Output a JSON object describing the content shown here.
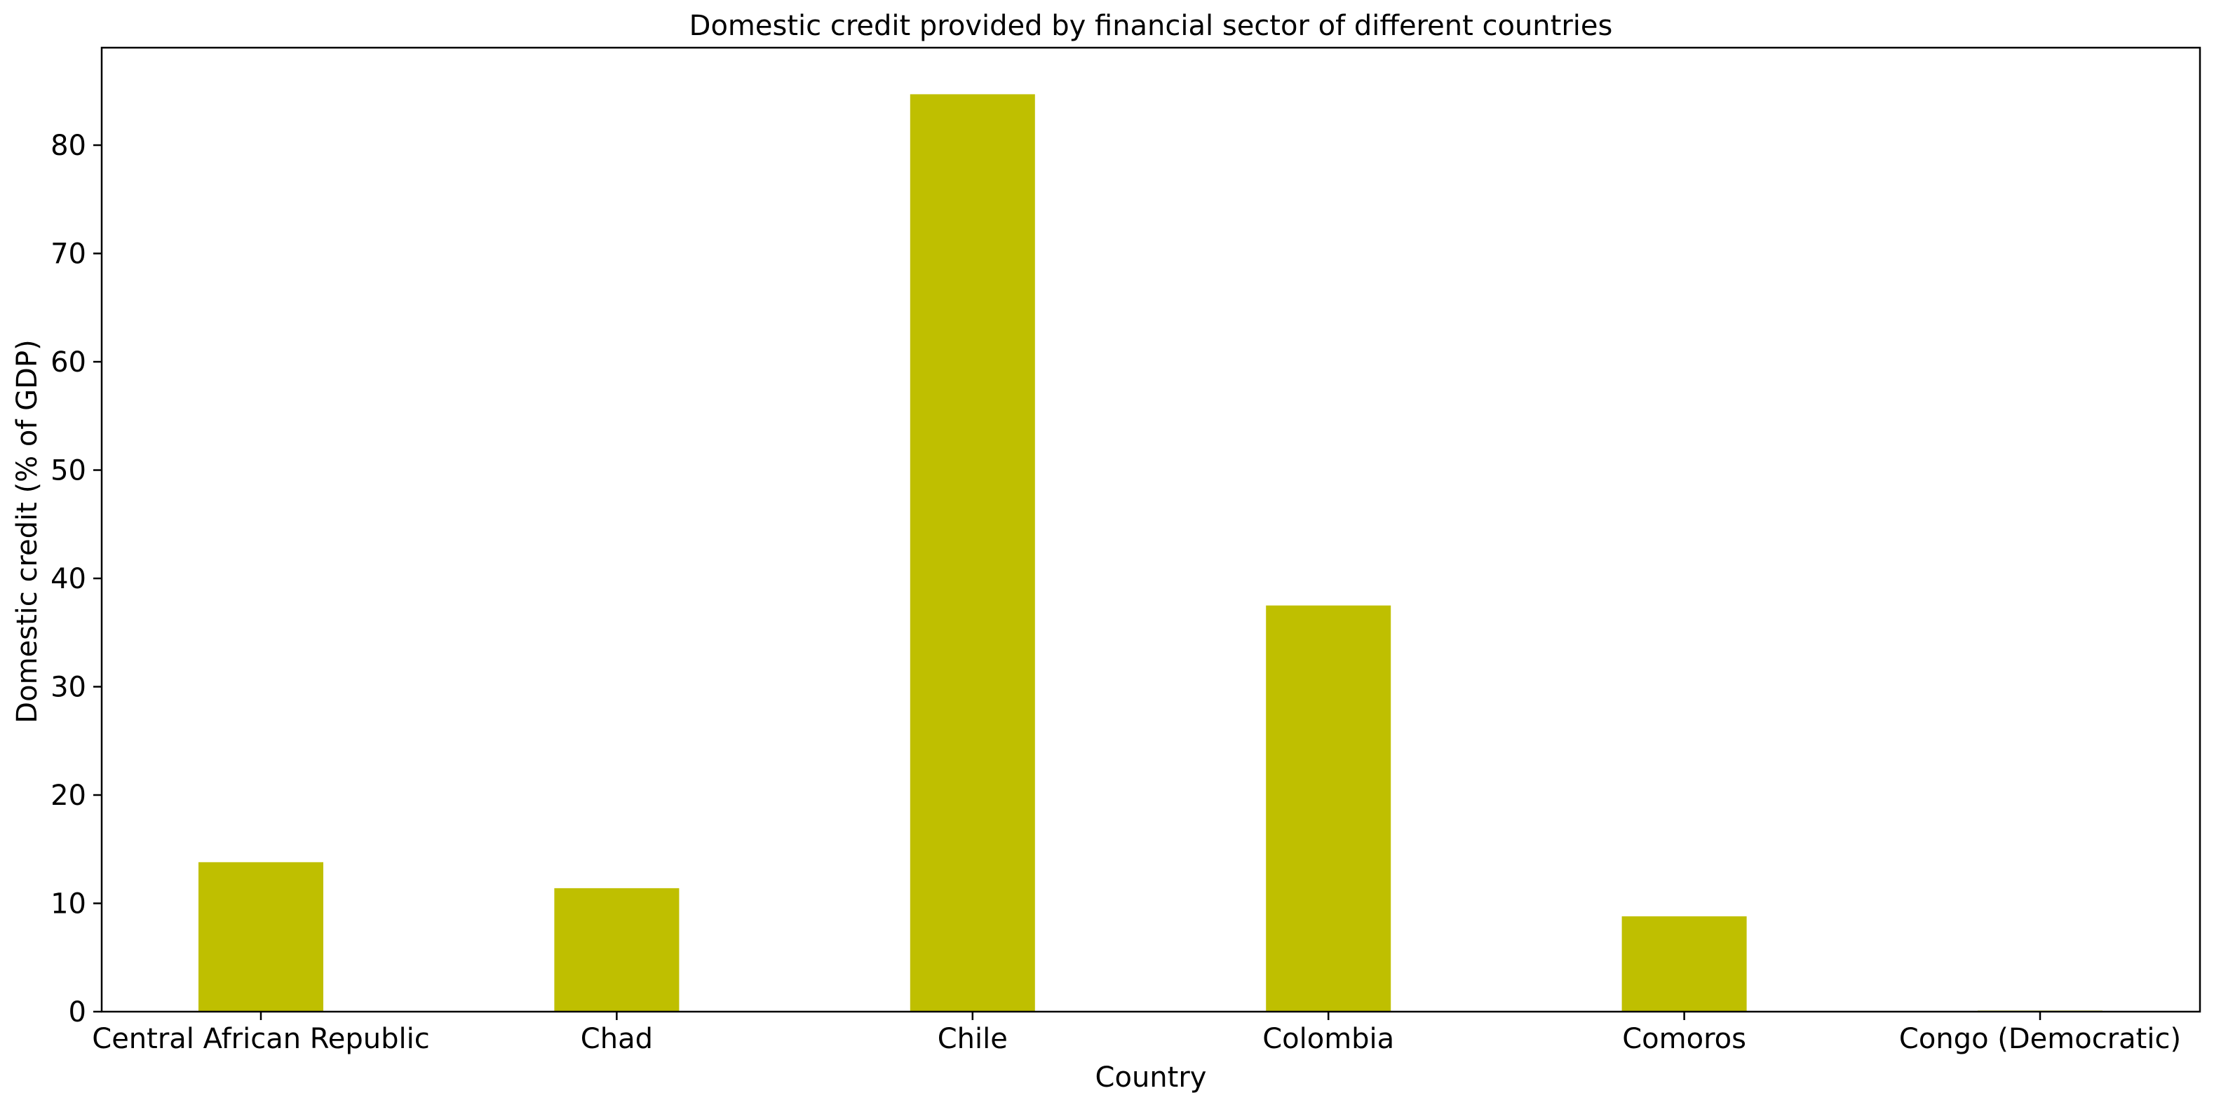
{
  "chart_data": {
    "type": "bar",
    "title": "Domestic credit provided by financial sector of different countries",
    "xlabel": "Country",
    "ylabel": "Domestic credit (% of GDP)",
    "categories": [
      "Central African Republic",
      "Chad",
      "Chile",
      "Colombia",
      "Comoros",
      "Congo (Democratic)"
    ],
    "values": [
      13.8,
      11.4,
      84.7,
      37.5,
      8.8,
      0.1
    ],
    "ylim": [
      0,
      89
    ],
    "yticks": [
      0,
      10,
      20,
      30,
      40,
      50,
      60,
      70,
      80
    ],
    "bar_color": "#bfbf00",
    "grid": false,
    "legend": "none"
  }
}
